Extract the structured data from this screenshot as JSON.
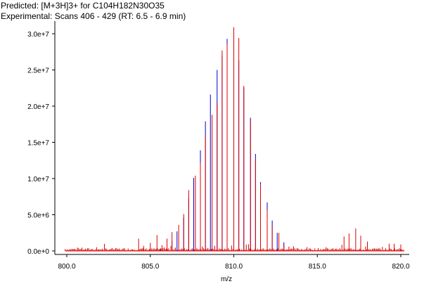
{
  "legend": {
    "predicted": "Predicted: [M+3H]3+ for C104H182N30O35",
    "experimental": "Experimental: Scans 406 - 429 (RT:  6.5 -  6.9 min)"
  },
  "colors": {
    "predicted": "#0000cc",
    "experimental": "#dd0000",
    "axis": "#000000",
    "background": "#ffffff"
  },
  "chart_data": {
    "type": "line",
    "title": "",
    "xlabel": "m/z",
    "ylabel": "",
    "xlim": [
      798.0,
      820.5
    ],
    "ylim": [
      0,
      31500000
    ],
    "x_ticks": [
      {
        "value": 800.0,
        "label": "800.0"
      },
      {
        "value": 805.0,
        "label": "805.0"
      },
      {
        "value": 810.0,
        "label": "810.0"
      },
      {
        "value": 815.0,
        "label": "815.0"
      },
      {
        "value": 820.0,
        "label": "820.0"
      }
    ],
    "y_ticks": [
      {
        "value": 0,
        "label": "0.0e+0"
      },
      {
        "value": 5000000,
        "label": "5.0e+6"
      },
      {
        "value": 10000000,
        "label": "1.0e+7"
      },
      {
        "value": 15000000,
        "label": "1.5e+7"
      },
      {
        "value": 20000000,
        "label": "2.0e+7"
      },
      {
        "value": 25000000,
        "label": "2.5e+7"
      },
      {
        "value": 30000000,
        "label": "3.0e+7"
      }
    ],
    "grid": false,
    "series": [
      {
        "name": "Predicted: [M+3H]3+ for C104H182N30O35",
        "color": "#0000cc",
        "x": [
          805.6,
          806.0,
          806.3,
          806.6,
          807.0,
          807.3,
          807.6,
          808.0,
          808.3,
          808.6,
          809.0,
          809.3,
          809.6,
          810.0,
          810.3,
          810.6,
          811.0,
          811.3,
          811.6,
          812.0,
          812.3,
          812.6,
          813.0
        ],
        "y": [
          200000,
          700000,
          1400000,
          2700000,
          4600000,
          7300000,
          10100000,
          13900000,
          17900000,
          21600000,
          25000000,
          27000000,
          29300000,
          29500000,
          26300000,
          22500000,
          18400000,
          13400000,
          9500000,
          6700000,
          4200000,
          2500000,
          1200000
        ]
      },
      {
        "name": "Experimental: Scans 406 - 429 (RT:  6.5 -  6.9 min)",
        "color": "#dd0000",
        "x": [
          804.3,
          804.6,
          805.0,
          805.4,
          805.7,
          806.0,
          806.3,
          806.7,
          807.0,
          807.3,
          807.7,
          808.0,
          808.3,
          808.7,
          809.0,
          809.3,
          809.6,
          810.0,
          810.3,
          810.6,
          811.0,
          811.3,
          811.6,
          812.0,
          812.3,
          812.7,
          813.0,
          813.3,
          816.6,
          816.9,
          817.3,
          817.6,
          818.0,
          819.3,
          819.6,
          820.0
        ],
        "y": [
          1700000,
          700000,
          1100000,
          2200000,
          800000,
          1700000,
          2600000,
          3600000,
          5100000,
          8400000,
          10400000,
          12200000,
          15900000,
          18800000,
          20500000,
          27700000,
          28600000,
          30900000,
          29400000,
          22800000,
          18000000,
          12700000,
          9200000,
          5600000,
          3400000,
          2500000,
          900000,
          600000,
          2000000,
          2400000,
          3100000,
          2100000,
          1300000,
          1000000,
          1000000,
          900000
        ]
      }
    ]
  }
}
